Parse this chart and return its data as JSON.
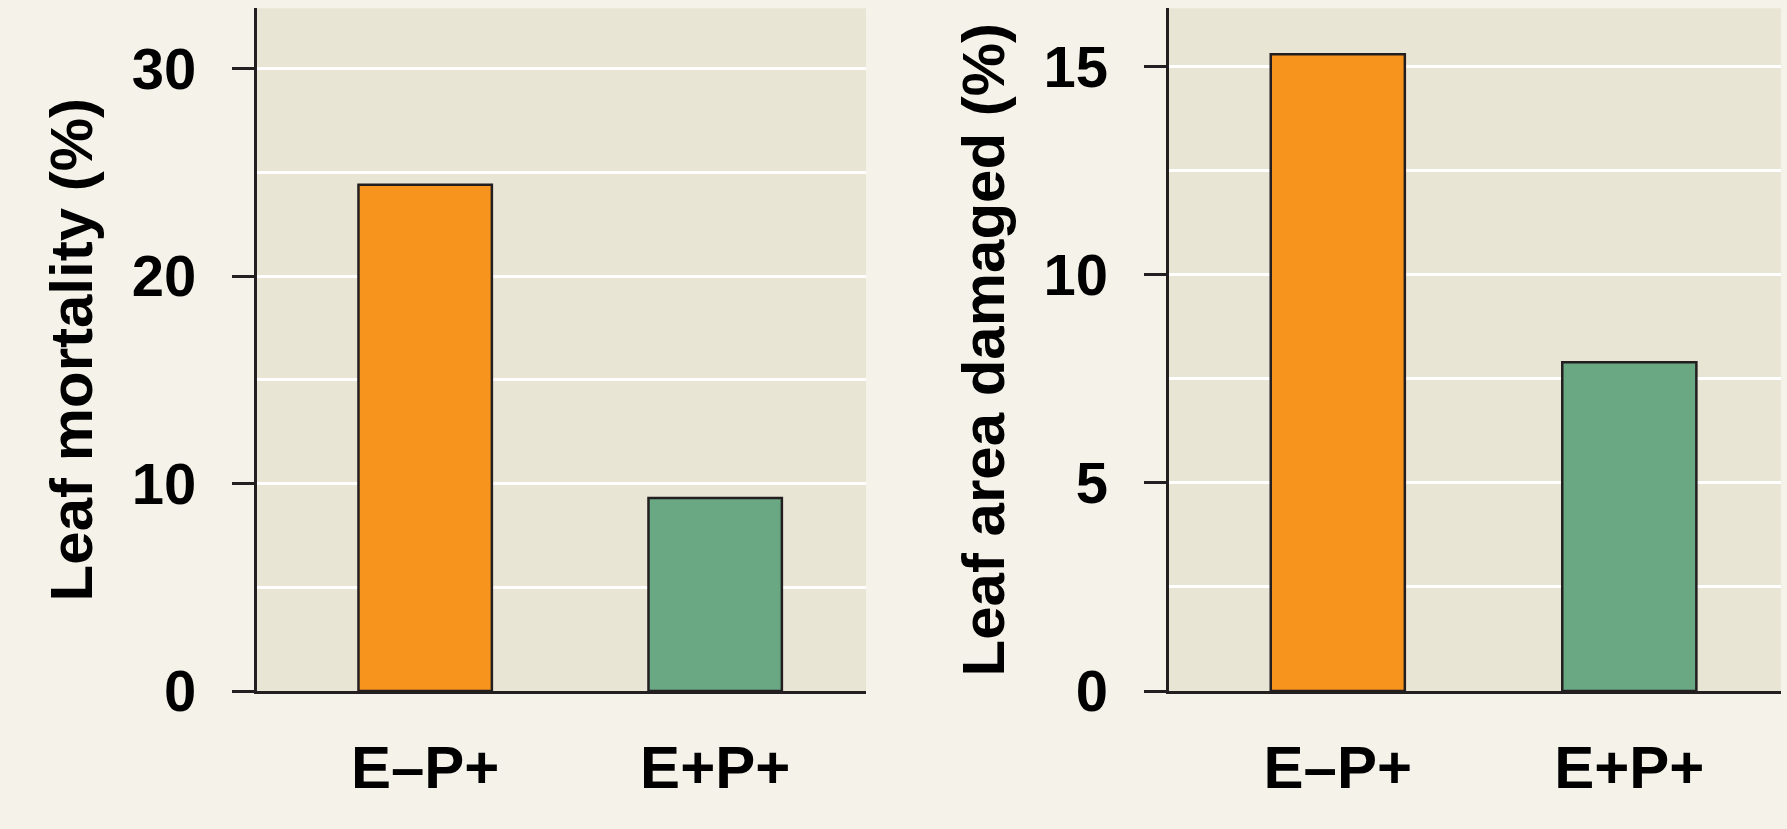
{
  "chart_data": [
    {
      "type": "bar",
      "ylabel": "Leaf mortality (%)",
      "categories": [
        "E–P+",
        "E+P+"
      ],
      "values": [
        24.4,
        9.3
      ],
      "colors": [
        "#f7941d",
        "#6aa783"
      ],
      "ylim": [
        0,
        32.9
      ],
      "yticks": [
        0,
        {
          "value": 5,
          "label": null
        },
        10,
        {
          "value": 15,
          "label": null
        },
        20,
        {
          "value": 25,
          "label": null
        },
        30
      ],
      "grid": "y"
    },
    {
      "type": "bar",
      "ylabel": "Leaf area damaged (%)",
      "categories": [
        "E–P+",
        "E+P+"
      ],
      "values": [
        15.3,
        7.9
      ],
      "colors": [
        "#f7941d",
        "#6aa783"
      ],
      "ylim": [
        0,
        16.4
      ],
      "yticks": [
        0,
        {
          "value": 2.5,
          "label": null
        },
        5,
        {
          "value": 7.5,
          "label": null
        },
        10,
        {
          "value": 12.5,
          "label": null
        },
        15
      ],
      "grid": "y"
    }
  ]
}
